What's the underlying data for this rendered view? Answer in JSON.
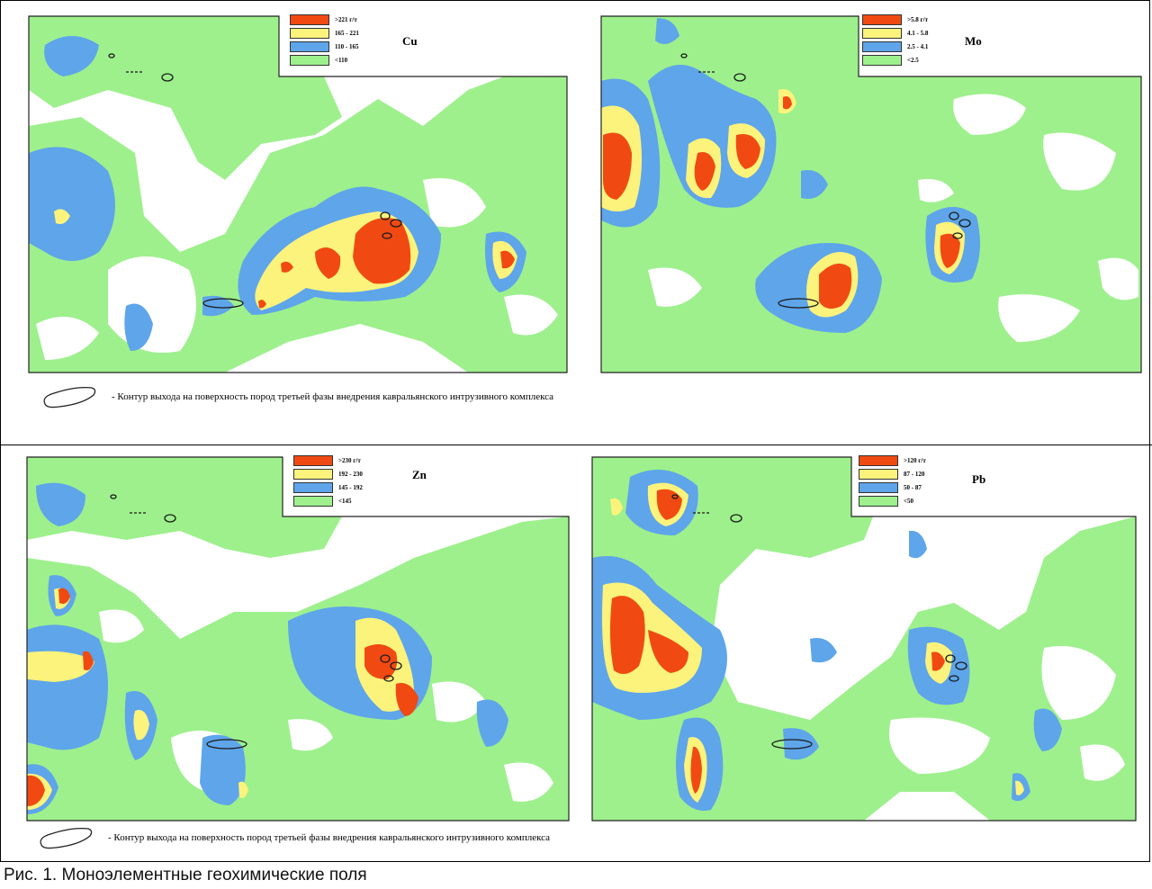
{
  "colors": {
    "red": "#f04a12",
    "yellow": "#fcf37c",
    "blue": "#5ea5ea",
    "green": "#9ef08d",
    "white": "#ffffff",
    "outline": "#1a1a1a"
  },
  "maps": [
    {
      "id": "cu",
      "element": "Cu",
      "legend": [
        ">221 г/т",
        "165 - 221",
        "110 - 165",
        "<110"
      ]
    },
    {
      "id": "mo",
      "element": "Mo",
      "legend": [
        ">5.8 г/т",
        "4.1 - 5.8",
        "2.5 - 4.1",
        "<2.5"
      ]
    },
    {
      "id": "zn",
      "element": "Zn",
      "legend": [
        ">230 г/т",
        "192 - 230",
        "145 - 192",
        "<145"
      ]
    },
    {
      "id": "pb",
      "element": "Pb",
      "legend": [
        ">120 г/т",
        "87 - 120",
        "50 - 87",
        "<50"
      ]
    }
  ],
  "note_top": "- Контур выхода на поверхность пород третьей фазы внедрения кавральянского интрузивного комплекса",
  "note_bottom": "- Контур выхода на поверхность пород третьей фазы внедрения кавральянского интрузивного комплекса",
  "caption": "Рис. 1. Моноэлементные геохимические поля"
}
